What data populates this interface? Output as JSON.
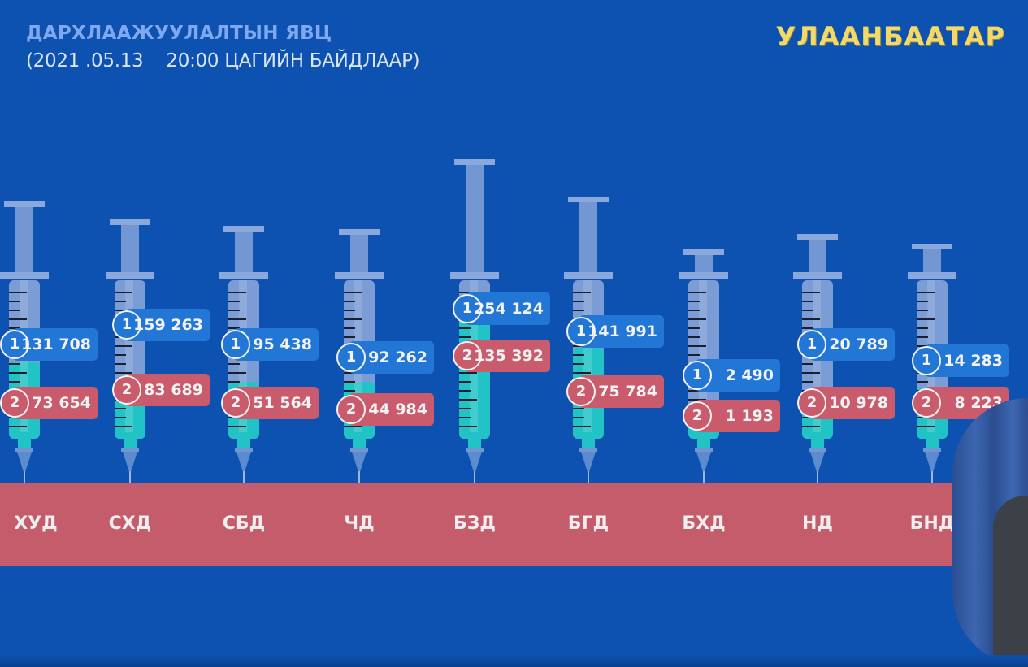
{
  "header": {
    "title": "ДАРХЛААЖУУЛАЛТЫН ЯВЦ",
    "subtitle": "(2021 .05.13    20:00 ЦАГИЙН БАЙДЛААР)",
    "city": "УЛААНБААТАР"
  },
  "colors": {
    "background": "#0d52b0",
    "dose1": "#2176d6",
    "dose2": "#c95b6c",
    "fill": "#22c3c6",
    "band": "#c55c6b",
    "city": "#f3d96a"
  },
  "chart_data": {
    "type": "bar",
    "title": "ДАРХЛААЖУУЛАЛТЫН ЯВЦ",
    "subtitle": "(2021 .05.13 20:00 ЦАГИЙН БАЙДЛААР)",
    "xlabel": "",
    "ylabel": "",
    "legend": [
      "1",
      "2"
    ],
    "categories": [
      "ХУД",
      "СХД",
      "СБД",
      "ЧД",
      "БЗД",
      "БГД",
      "БХД",
      "НД",
      "БНД"
    ],
    "series": [
      {
        "name": "1",
        "values": [
          131708,
          159263,
          95438,
          92262,
          254124,
          141991,
          2490,
          20789,
          14283
        ],
        "labels": [
          "131 708",
          "159 263",
          "95 438",
          "92 262",
          "254 124",
          "141 991",
          "2 490",
          "20 789",
          "14 283"
        ]
      },
      {
        "name": "2",
        "values": [
          73654,
          83689,
          51564,
          44984,
          135392,
          75784,
          1193,
          10978,
          8223
        ],
        "labels": [
          "73 654",
          "83 689",
          "51 564",
          "44 984",
          "135 392",
          "75 784",
          "1 193",
          "10 978",
          "8 223"
        ]
      }
    ]
  }
}
